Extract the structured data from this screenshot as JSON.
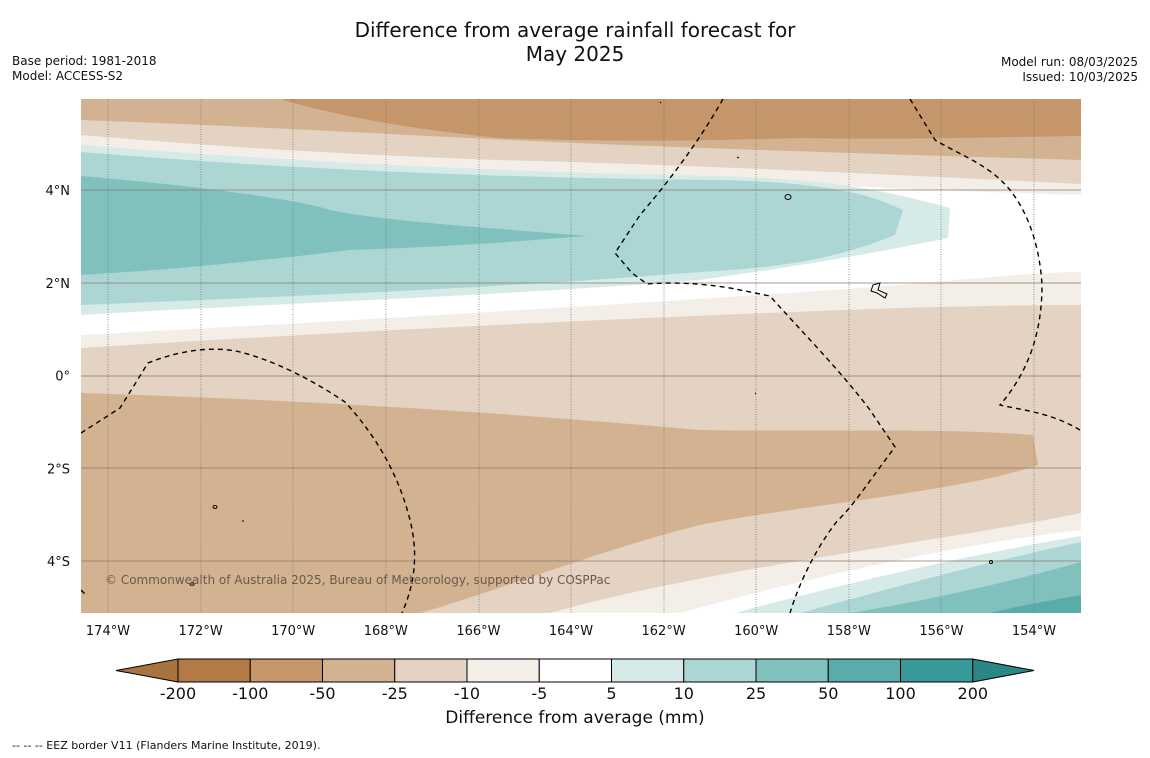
{
  "title_line1": "Difference from average rainfall forecast for",
  "title_line2": "May 2025",
  "meta_left": [
    "Base period: 1981-2018",
    "Model: ACCESS-S2"
  ],
  "meta_right": [
    "Model run: 08/03/2025",
    "Issued: 10/03/2025"
  ],
  "lon_labels": [
    "174°W",
    "172°W",
    "170°W",
    "168°W",
    "166°W",
    "164°W",
    "162°W",
    "160°W",
    "158°W",
    "156°W",
    "154°W"
  ],
  "lat_labels": [
    "4°N",
    "2°N",
    "0°",
    "2°S",
    "4°S"
  ],
  "copyright": "© Commonwealth of Australia 2025, Bureau of Meteorology, supported by COSPPac",
  "colorbar": {
    "ticks": [
      "-200",
      "-100",
      "-50",
      "-25",
      "-10",
      "-5",
      "5",
      "10",
      "25",
      "50",
      "100",
      "200"
    ],
    "colors": [
      "#a6753f",
      "#b37a45",
      "#c4966a",
      "#d3b292",
      "#e4d2c2",
      "#f3eee8",
      "#ffffff",
      "#d6ebe8",
      "#acd6d4",
      "#80c1be",
      "#5aacab",
      "#38999a",
      "#2a8788"
    ],
    "label": "Difference from average (mm)"
  },
  "footer": "--  --  -- EEZ border V11 (Flanders Marine Institute, 2019)."
}
